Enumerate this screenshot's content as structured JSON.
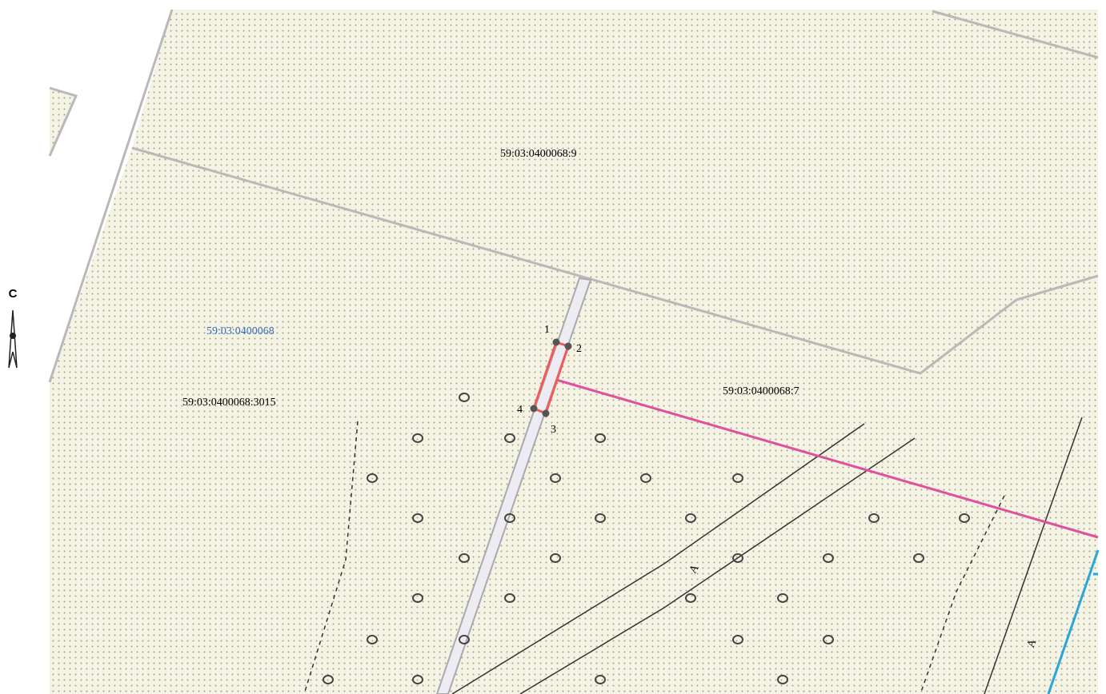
{
  "north": "С",
  "parcels": {
    "top": "59:03:0400068:9",
    "quarter": "59:03:0400068",
    "left": "59:03:0400068:3015",
    "right": "59:03:0400068:7"
  },
  "points": [
    "1",
    "2",
    "3",
    "4"
  ],
  "zones": [
    "А",
    "А"
  ]
}
